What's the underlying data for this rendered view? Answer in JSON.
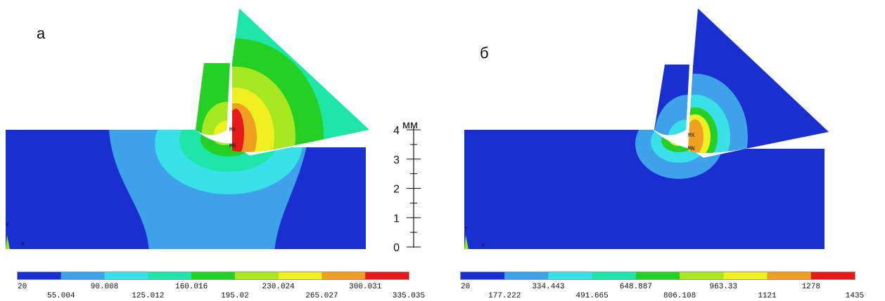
{
  "panels": [
    {
      "label": "а",
      "max_label": "MX",
      "min_label": "MN",
      "legend": [
        20,
        55.004,
        90.008,
        125.012,
        160.016,
        195.02,
        230.024,
        265.027,
        300.031,
        335.035
      ]
    },
    {
      "label": "б",
      "max_label": "MX",
      "min_label": "MN",
      "legend": [
        20,
        177.222,
        334.443,
        491.665,
        648.887,
        806.108,
        963.33,
        1121,
        1278,
        1435
      ]
    }
  ],
  "ruler": {
    "unit": "мм",
    "ticks": [
      0,
      1,
      2,
      3,
      4
    ]
  }
}
